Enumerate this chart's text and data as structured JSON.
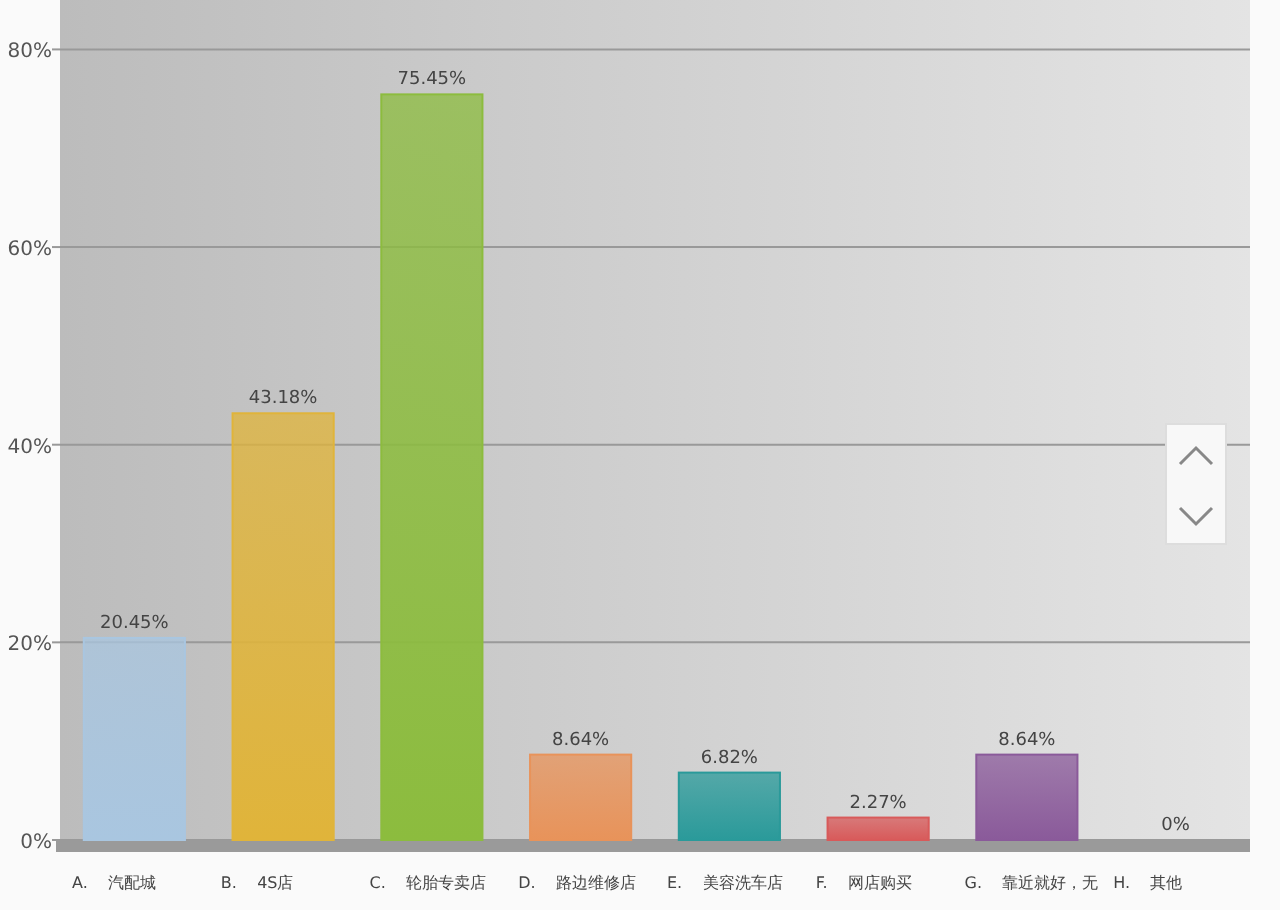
{
  "chart_data": {
    "type": "bar",
    "categories": [
      "A.    汽配城",
      "B.    4S店",
      "C.    轮胎专卖店",
      "D.    路边维修店",
      "E.    美容洗车店",
      "F.    网店购买",
      "G.    靠近就好，无",
      "H.    其他"
    ],
    "values": [
      20.45,
      43.18,
      75.45,
      8.64,
      6.82,
      2.27,
      8.64,
      0
    ],
    "value_labels": [
      "20.45%",
      "43.18%",
      "75.45%",
      "8.64%",
      "6.82%",
      "2.27%",
      "8.64%",
      "0%"
    ],
    "colors": [
      "#a9c6e0",
      "#e0b43a",
      "#8cbc3e",
      "#e8935a",
      "#2a9a9a",
      "#d85a5a",
      "#8a5a9a",
      "#6aa040"
    ],
    "ylim": [
      0,
      85
    ],
    "yticks": [
      {
        "value": 0,
        "label": "0%"
      },
      {
        "value": 20,
        "label": "20%"
      },
      {
        "value": 40,
        "label": "40%"
      },
      {
        "value": 60,
        "label": "60%"
      },
      {
        "value": 80,
        "label": "80%"
      }
    ],
    "grid": "y"
  }
}
